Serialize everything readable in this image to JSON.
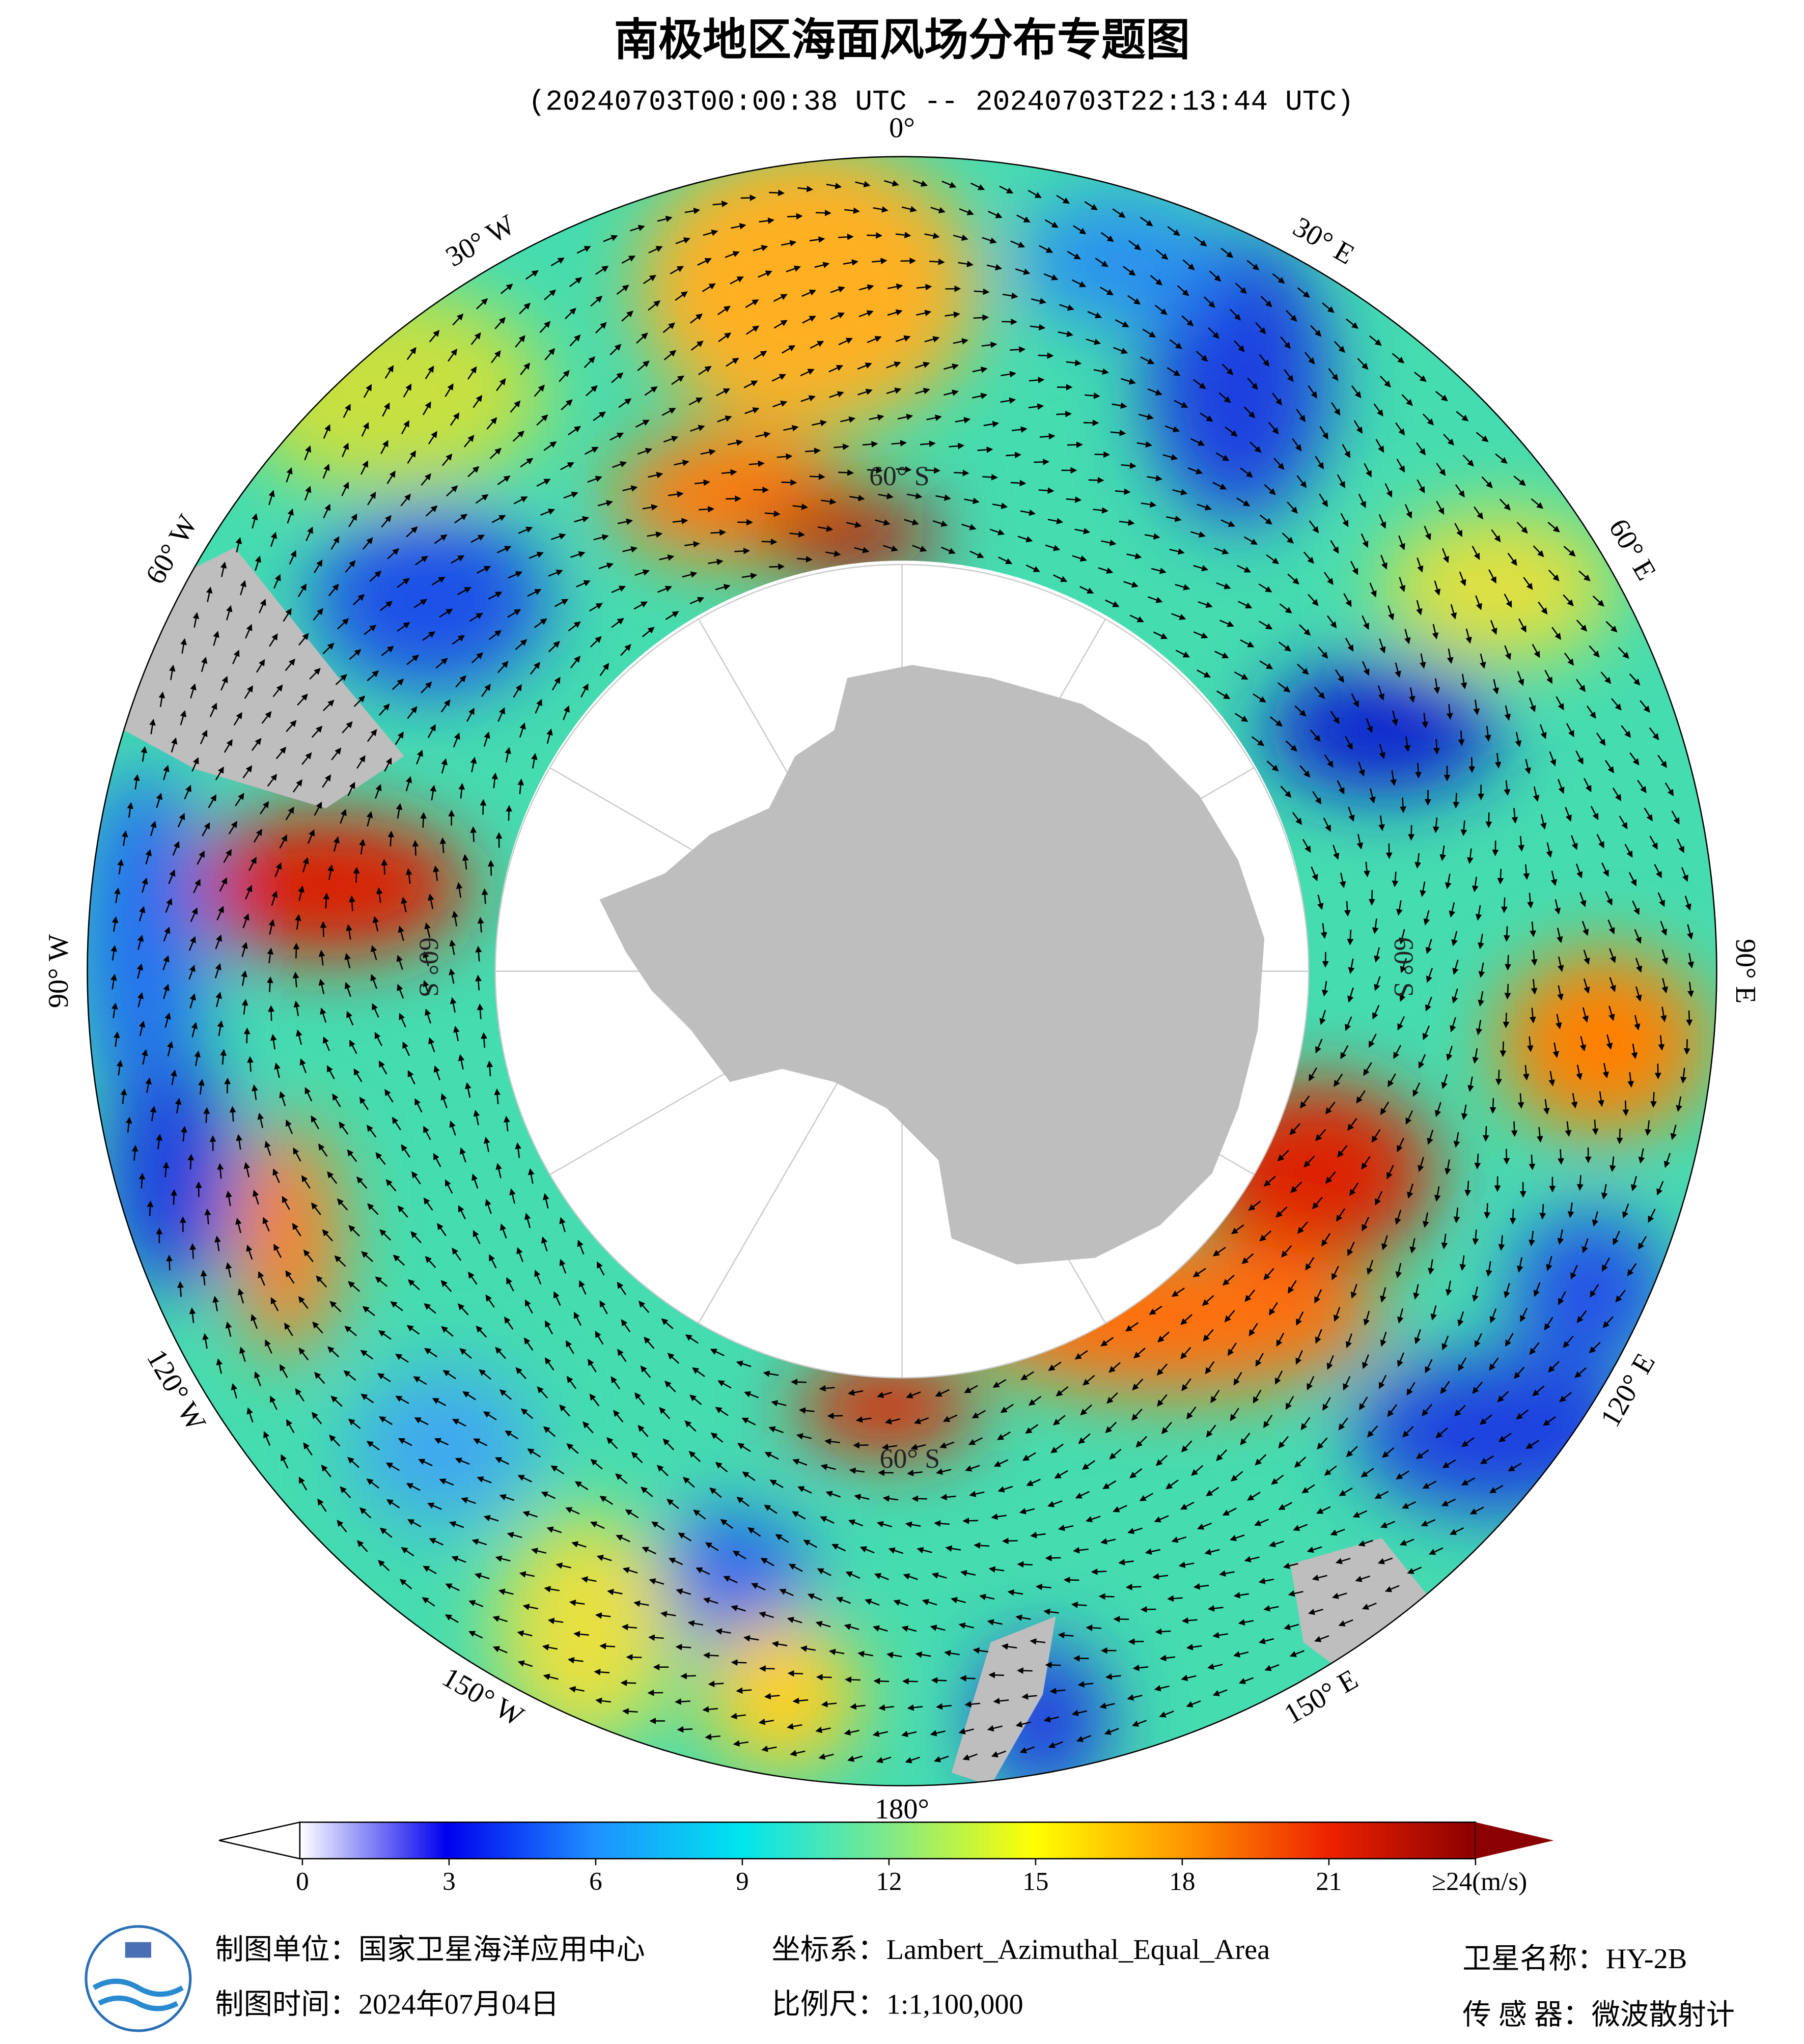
{
  "header": {
    "title": "南极地区海面风场分布专题图",
    "subtitle": "(20240703T00:00:38 UTC -- 20240703T22:13:44 UTC)"
  },
  "map": {
    "lon_labels": [
      "0°",
      "30° E",
      "60° E",
      "90° E",
      "120° E",
      "150° E",
      "180°",
      "150° W",
      "120° W",
      "90° W",
      "60° W",
      "30° W"
    ],
    "lat_labels": [
      "60° S",
      "60° S",
      "60° S",
      "60° S"
    ]
  },
  "colorbar": {
    "range": [
      0,
      24
    ],
    "colors": [
      "#ffffff",
      "#0000ee",
      "#1e90ff",
      "#00e5ee",
      "#7fe88a",
      "#ffff00",
      "#ff9900",
      "#ee2200",
      "#8b0000"
    ],
    "ticks": [
      0,
      3,
      6,
      9,
      12,
      15,
      18,
      21,
      {
        "value": 24,
        "label": "≥24(m/s)"
      }
    ]
  },
  "footer": {
    "items": [
      "制图单位：国家卫星海洋应用中心",
      "制图时间：2024年07月04日",
      "坐标系：Lambert_Azimuthal_Equal_Area",
      "比例尺：1:1,100,000",
      "卫星名称：HY-2B",
      "传 感 器：微波散射计"
    ]
  }
}
